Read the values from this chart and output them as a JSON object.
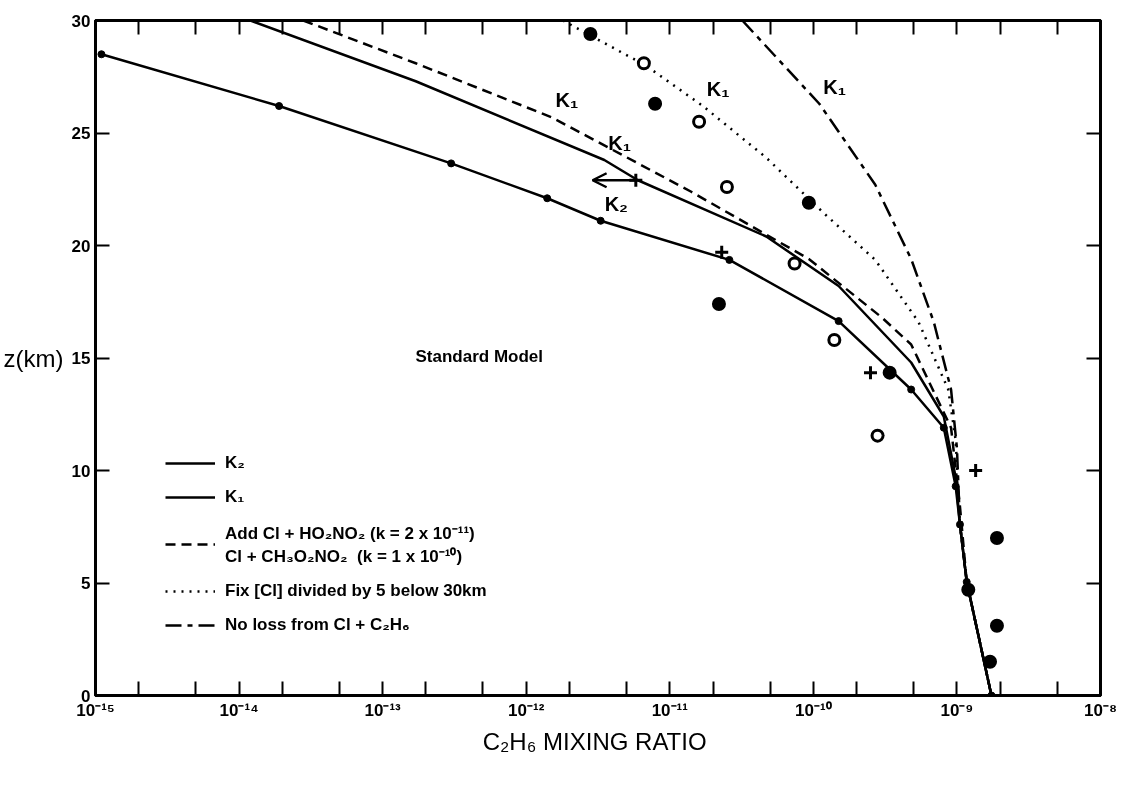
{
  "chart_data": {
    "type": "line",
    "xlabel": "C₂H₆  MIXING RATIO",
    "ylabel": "z(km)",
    "log": "x",
    "grid": false,
    "legend": "bottom left",
    "xlim": [
      1e-15,
      1e-08
    ],
    "ylim": [
      0,
      30
    ],
    "xticks": [
      {
        "value": 1e-15,
        "label": "10⁻¹⁵"
      },
      {
        "value": 2e-15,
        "label": null
      },
      {
        "value": 5e-15,
        "label": null
      },
      {
        "value": 1e-14,
        "label": "10⁻¹⁴"
      },
      {
        "value": 2e-14,
        "label": null
      },
      {
        "value": 5e-14,
        "label": null
      },
      {
        "value": 1e-13,
        "label": "10⁻¹³"
      },
      {
        "value": 2e-13,
        "label": null
      },
      {
        "value": 5e-13,
        "label": null
      },
      {
        "value": 1e-12,
        "label": "10⁻¹²"
      },
      {
        "value": 2e-12,
        "label": null
      },
      {
        "value": 5e-12,
        "label": null
      },
      {
        "value": 1e-11,
        "label": "10⁻¹¹"
      },
      {
        "value": 2e-11,
        "label": null
      },
      {
        "value": 5e-11,
        "label": null
      },
      {
        "value": 1e-10,
        "label": "10⁻¹⁰"
      },
      {
        "value": 2e-10,
        "label": null
      },
      {
        "value": 5e-10,
        "label": null
      },
      {
        "value": 1e-09,
        "label": "10⁻⁹"
      },
      {
        "value": 2e-09,
        "label": null
      },
      {
        "value": 5e-09,
        "label": null
      },
      {
        "value": 1e-08,
        "label": "10⁻⁸"
      }
    ],
    "yticks": [
      0,
      5,
      10,
      15,
      20,
      25,
      30
    ],
    "series": [
      {
        "name": "K₂",
        "line_style": "solid",
        "marker": "circle",
        "color": "#000000",
        "x": [
          1.1e-15,
          1.9e-14,
          3e-13,
          1.4e-12,
          3.3e-12,
          2.6e-11,
          1.5e-10,
          4.8e-10,
          8.1e-10,
          9.8e-10,
          1.05e-09,
          1.17e-09,
          1.74e-09
        ],
        "values": [
          28.5,
          26.2,
          23.65,
          22.1,
          21.1,
          19.36,
          16.64,
          13.6,
          11.9,
          9.3,
          7.6,
          5.05,
          0
        ]
      },
      {
        "name": "K₁",
        "line_style": "solid",
        "color": "#000000",
        "x": [
          1.2e-14,
          1.7e-13,
          3.5e-12,
          6e-12,
          4.7e-11,
          1.5e-10,
          4.8e-10,
          8.1e-10,
          9.8e-10,
          1.05e-09,
          1.17e-09,
          1.74e-09
        ],
        "values": [
          30,
          27.3,
          23.8,
          22.9,
          20.4,
          18.2,
          14.8,
          12.4,
          9.7,
          7.6,
          5.05,
          0
        ]
      },
      {
        "name": "Add Cl + HO₂NO₂ (k = 2 x 10⁻¹¹)\nCl + CH₃O₂NO₂  (k = 1 x 10⁻¹⁰)",
        "line_style": "dashed",
        "color": "#000000",
        "x": [
          2.8e-14,
          1.7e-13,
          1.5e-12,
          1.4e-11,
          9.3e-11,
          3e-10,
          4.8e-10,
          9.1e-10,
          1.05e-09,
          1.17e-09,
          1.74e-09
        ],
        "values": [
          30,
          28.1,
          25.7,
          22.4,
          19.4,
          16.8,
          15.6,
          11.9,
          8.4,
          5.05,
          0
        ]
      },
      {
        "name": "Fix [Cl] divided by 5 below 30km",
        "line_style": "dotted",
        "color": "#000000",
        "x": [
          1.8e-12,
          6.8e-12,
          1.7e-11,
          4.7e-11,
          1.2e-10,
          2.7e-10,
          5.4e-10,
          8.7e-10,
          9.8e-10,
          1.05e-09,
          1.17e-09,
          1.74e-09
        ],
        "values": [
          30,
          28,
          26.2,
          23.9,
          21.4,
          19.36,
          16.6,
          13.6,
          11.35,
          7.6,
          5.05,
          0
        ]
      },
      {
        "name": "No loss from Cl + C₂H₆",
        "line_style": "dashdot",
        "color": "#000000",
        "x": [
          3.2e-11,
          1.1e-10,
          2.7e-10,
          4.8e-10,
          6.9e-10,
          9.1e-10,
          1e-09,
          1.05e-09,
          1.17e-09,
          1.74e-09
        ],
        "values": [
          30,
          26.3,
          22.7,
          19.4,
          16.6,
          13.6,
          11.0,
          7.6,
          5.05,
          0
        ]
      },
      {
        "type": "scatter",
        "marker": "circle",
        "color": "#000000",
        "x": [
          2.8e-12,
          7.9e-12,
          9.3e-11,
          2.2e-11,
          3.4e-10,
          1.9e-09,
          1.2e-09,
          1.9e-09,
          1.7e-09
        ],
        "values": [
          29.4,
          26.3,
          21.9,
          17.4,
          14.35,
          7.0,
          4.7,
          3.1,
          1.5
        ]
      },
      {
        "type": "scatter",
        "marker": "circle_open",
        "color": "#000000",
        "x": [
          6.6e-12,
          1.6e-11,
          2.5e-11,
          7.4e-11,
          1.4e-10,
          2.8e-10
        ],
        "values": [
          28.1,
          25.5,
          22.6,
          19.2,
          15.8,
          11.55
        ]
      },
      {
        "type": "scatter",
        "marker": "cross",
        "color": "#000000",
        "x": [
          5.8e-12,
          2.3e-11,
          2.5e-10,
          1.35e-09
        ],
        "values": [
          22.9,
          19.7,
          14.35,
          10.0
        ],
        "xerrors": [
          [
            2.9e-12,
            5.8e-12
          ],
          null,
          null,
          null
        ]
      }
    ],
    "annotations": [
      {
        "text": "K₁",
        "x": 1.5e-12,
        "y": 25.7
      },
      {
        "text": "K₁",
        "x": 3.5e-12,
        "y": 23.8
      },
      {
        "text": "K₂",
        "x": 3.3e-12,
        "y": 21.1
      },
      {
        "text": "K₁",
        "x": 1.7e-11,
        "y": 26.2
      },
      {
        "text": "K₁",
        "x": 1.1e-10,
        "y": 26.3
      },
      "Standard Model"
    ]
  }
}
